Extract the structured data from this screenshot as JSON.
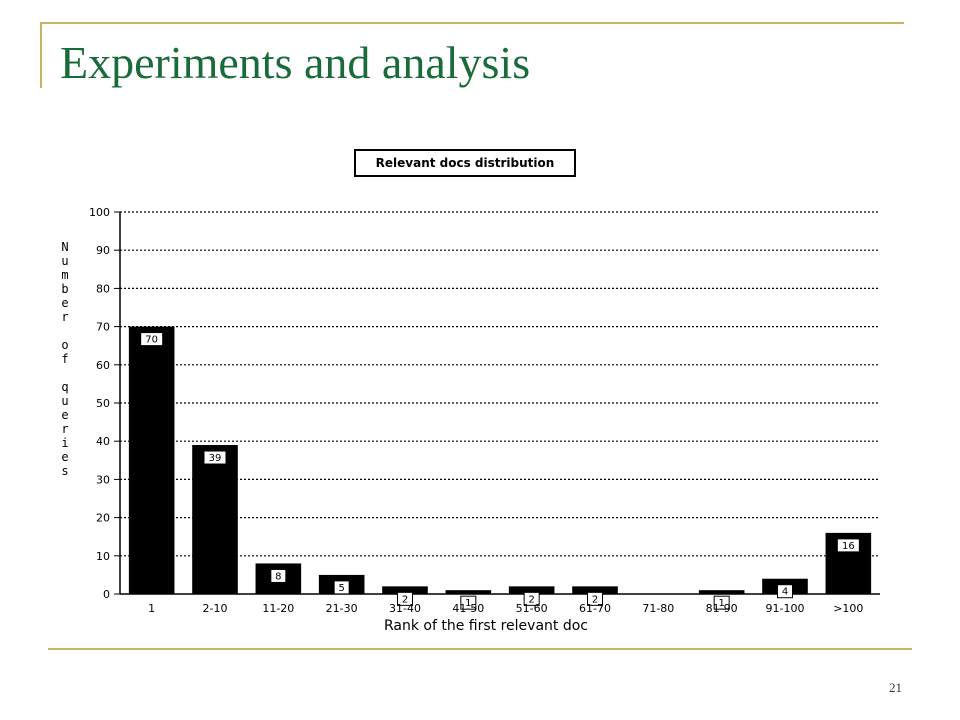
{
  "slide": {
    "title": "Experiments and analysis",
    "page_number": "21"
  },
  "colors": {
    "title": "#1a6b3a",
    "decoration": "#c8b464",
    "bars": "#000000"
  },
  "chart_data": {
    "type": "bar",
    "title": "Relevant docs distribution",
    "xlabel": "Rank of the first relevant doc",
    "ylabel": "Number of queries",
    "categories": [
      "1",
      "2-10",
      "11-20",
      "21-30",
      "31-40",
      "41-50",
      "51-60",
      "61-70",
      "71-80",
      "81-90",
      "91-100",
      ">100"
    ],
    "values": [
      70,
      39,
      8,
      5,
      2,
      1,
      2,
      2,
      0,
      1,
      4,
      16
    ],
    "data_labels": [
      "70",
      "39",
      "8",
      "5",
      "2",
      "1",
      "2",
      "2",
      "",
      "1",
      "4",
      "16"
    ],
    "ylim": [
      0,
      100
    ],
    "yticks": [
      0,
      10,
      20,
      30,
      40,
      50,
      60,
      70,
      80,
      90,
      100
    ],
    "grid": true,
    "legend": "none"
  }
}
